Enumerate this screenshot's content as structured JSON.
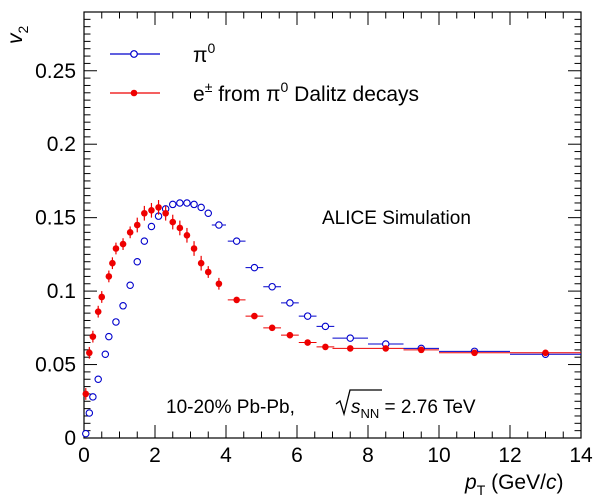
{
  "chart_data": {
    "type": "scatter",
    "xlabel": "p_T (GeV/c)",
    "ylabel": "v_2",
    "xlim": [
      0,
      14
    ],
    "ylim": [
      0,
      0.29
    ],
    "x_ticks": [
      "0",
      "2",
      "4",
      "6",
      "8",
      "10",
      "12",
      "14"
    ],
    "y_ticks": [
      "0",
      "0.05",
      "0.1",
      "0.15",
      "0.2",
      "0.25"
    ],
    "x_tick_values": [
      0,
      2,
      4,
      6,
      8,
      10,
      12,
      14
    ],
    "y_tick_values": [
      0,
      0.05,
      0.1,
      0.15,
      0.2,
      0.25
    ],
    "grid": false,
    "legend_position": "top-left",
    "annotations": {
      "simulation": "ALICE Simulation",
      "system_prefix": "10-20% Pb-Pb, ",
      "system_s": "s",
      "system_sub": "NN",
      "system_suffix": " = 2.76 TeV"
    },
    "series": [
      {
        "name": "π⁰",
        "legend_main": "π",
        "legend_sup": "0",
        "color": "#0000cc",
        "marker": "open-circle",
        "points": [
          {
            "x": 0.05,
            "y": 0.003
          },
          {
            "x": 0.15,
            "y": 0.017
          },
          {
            "x": 0.25,
            "y": 0.028
          },
          {
            "x": 0.4,
            "y": 0.04
          },
          {
            "x": 0.6,
            "y": 0.057
          },
          {
            "x": 0.7,
            "y": 0.069
          },
          {
            "x": 0.9,
            "y": 0.079
          },
          {
            "x": 1.1,
            "y": 0.09
          },
          {
            "x": 1.3,
            "y": 0.104
          },
          {
            "x": 1.5,
            "y": 0.12
          },
          {
            "x": 1.7,
            "y": 0.134
          },
          {
            "x": 1.9,
            "y": 0.144
          },
          {
            "x": 2.1,
            "y": 0.151
          },
          {
            "x": 2.3,
            "y": 0.156
          },
          {
            "x": 2.5,
            "y": 0.159
          },
          {
            "x": 2.7,
            "y": 0.16
          },
          {
            "x": 2.9,
            "y": 0.16
          },
          {
            "x": 3.1,
            "y": 0.159
          },
          {
            "x": 3.3,
            "y": 0.157
          },
          {
            "x": 3.5,
            "y": 0.153
          },
          {
            "x": 3.8,
            "y": 0.145,
            "xerr": 0.2
          },
          {
            "x": 4.3,
            "y": 0.134,
            "xerr": 0.25
          },
          {
            "x": 4.8,
            "y": 0.116,
            "xerr": 0.25
          },
          {
            "x": 5.3,
            "y": 0.103,
            "xerr": 0.25
          },
          {
            "x": 5.8,
            "y": 0.092,
            "xerr": 0.25
          },
          {
            "x": 6.3,
            "y": 0.083,
            "xerr": 0.25
          },
          {
            "x": 6.8,
            "y": 0.076,
            "xerr": 0.25
          },
          {
            "x": 7.5,
            "y": 0.068,
            "xerr": 0.5
          },
          {
            "x": 8.5,
            "y": 0.064,
            "xerr": 0.5
          },
          {
            "x": 9.5,
            "y": 0.061,
            "xerr": 0.5
          },
          {
            "x": 11.0,
            "y": 0.059,
            "xerr": 1.0
          },
          {
            "x": 13.0,
            "y": 0.057,
            "xerr": 1.0
          }
        ]
      },
      {
        "name": "e± from π⁰ Dalitz decays",
        "legend_main": "e",
        "legend_sup1": "±",
        "legend_mid": " from π",
        "legend_sup2": "0",
        "legend_end": " Dalitz decays",
        "color": "#ee0000",
        "marker": "filled-circle",
        "points": [
          {
            "x": 0.05,
            "y": 0.03,
            "yerr": 0.004
          },
          {
            "x": 0.15,
            "y": 0.058,
            "yerr": 0.004
          },
          {
            "x": 0.25,
            "y": 0.069,
            "yerr": 0.004
          },
          {
            "x": 0.4,
            "y": 0.086,
            "yerr": 0.004
          },
          {
            "x": 0.5,
            "y": 0.096,
            "yerr": 0.004
          },
          {
            "x": 0.7,
            "y": 0.11,
            "yerr": 0.004
          },
          {
            "x": 0.8,
            "y": 0.119,
            "yerr": 0.004
          },
          {
            "x": 0.9,
            "y": 0.129,
            "yerr": 0.004
          },
          {
            "x": 1.1,
            "y": 0.132,
            "yerr": 0.004
          },
          {
            "x": 1.3,
            "y": 0.14,
            "yerr": 0.004
          },
          {
            "x": 1.5,
            "y": 0.145,
            "yerr": 0.005
          },
          {
            "x": 1.7,
            "y": 0.153,
            "yerr": 0.005
          },
          {
            "x": 1.9,
            "y": 0.155,
            "yerr": 0.005
          },
          {
            "x": 2.1,
            "y": 0.157,
            "yerr": 0.005
          },
          {
            "x": 2.3,
            "y": 0.153,
            "yerr": 0.005
          },
          {
            "x": 2.5,
            "y": 0.147,
            "yerr": 0.005
          },
          {
            "x": 2.7,
            "y": 0.143,
            "yerr": 0.005
          },
          {
            "x": 2.9,
            "y": 0.138,
            "yerr": 0.005
          },
          {
            "x": 3.1,
            "y": 0.129,
            "yerr": 0.005
          },
          {
            "x": 3.3,
            "y": 0.119,
            "yerr": 0.005
          },
          {
            "x": 3.5,
            "y": 0.113,
            "yerr": 0.004
          },
          {
            "x": 3.8,
            "y": 0.105,
            "yerr": 0.004
          },
          {
            "x": 4.3,
            "y": 0.094,
            "xerr": 0.25
          },
          {
            "x": 4.8,
            "y": 0.083,
            "xerr": 0.25
          },
          {
            "x": 5.3,
            "y": 0.075,
            "xerr": 0.25
          },
          {
            "x": 5.8,
            "y": 0.07,
            "xerr": 0.25
          },
          {
            "x": 6.3,
            "y": 0.065,
            "xerr": 0.25
          },
          {
            "x": 6.8,
            "y": 0.062,
            "xerr": 0.25
          },
          {
            "x": 7.5,
            "y": 0.061,
            "xerr": 0.5
          },
          {
            "x": 8.5,
            "y": 0.061,
            "xerr": 0.5
          },
          {
            "x": 9.5,
            "y": 0.06,
            "xerr": 0.5
          },
          {
            "x": 11.0,
            "y": 0.058,
            "xerr": 1.0
          },
          {
            "x": 13.0,
            "y": 0.058,
            "xerr": 1.0
          }
        ]
      }
    ]
  }
}
